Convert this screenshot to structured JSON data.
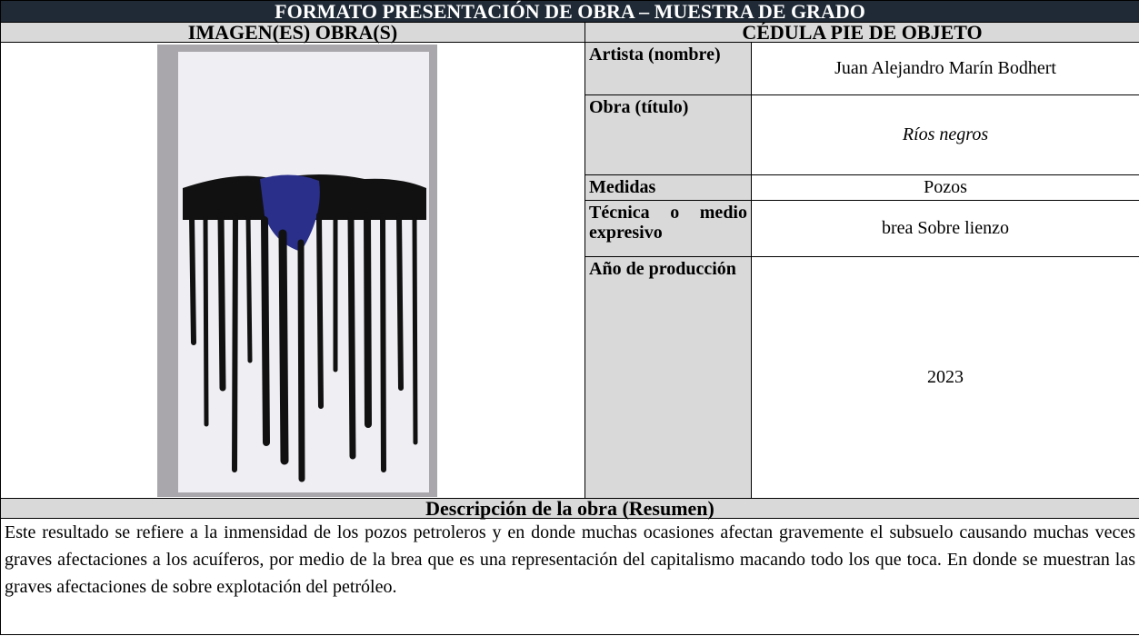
{
  "header": {
    "title": "FORMATO PRESENTACIÓN DE OBRA – MUESTRA DE GRADO",
    "left_heading": "IMAGEN(ES) OBRA(S)",
    "right_heading": "CÉDULA PIE DE OBJETO"
  },
  "fields": [
    {
      "label": "Artista (nombre)",
      "value": "Juan Alejandro Marín Bodhert"
    },
    {
      "label": "Obra (título)",
      "value": "Ríos negros"
    },
    {
      "label": "Medidas",
      "value": "Pozos"
    },
    {
      "label": "Técnica o medio expresivo",
      "value": "brea Sobre lienzo"
    },
    {
      "label": "Año de producción",
      "value": "2023"
    }
  ],
  "description": {
    "heading": "Descripción de la obra (Resumen)",
    "text": "Este resultado se refiere a la inmensidad de los pozos petroleros y en donde muchas ocasiones afectan gravemente el subsuelo causando muchas veces graves afectaciones a los acuíferos, por medio de la brea que es una representación del capitalismo macando todo los que toca. En donde se muestran las graves afectaciones de sobre explotación del petróleo."
  }
}
